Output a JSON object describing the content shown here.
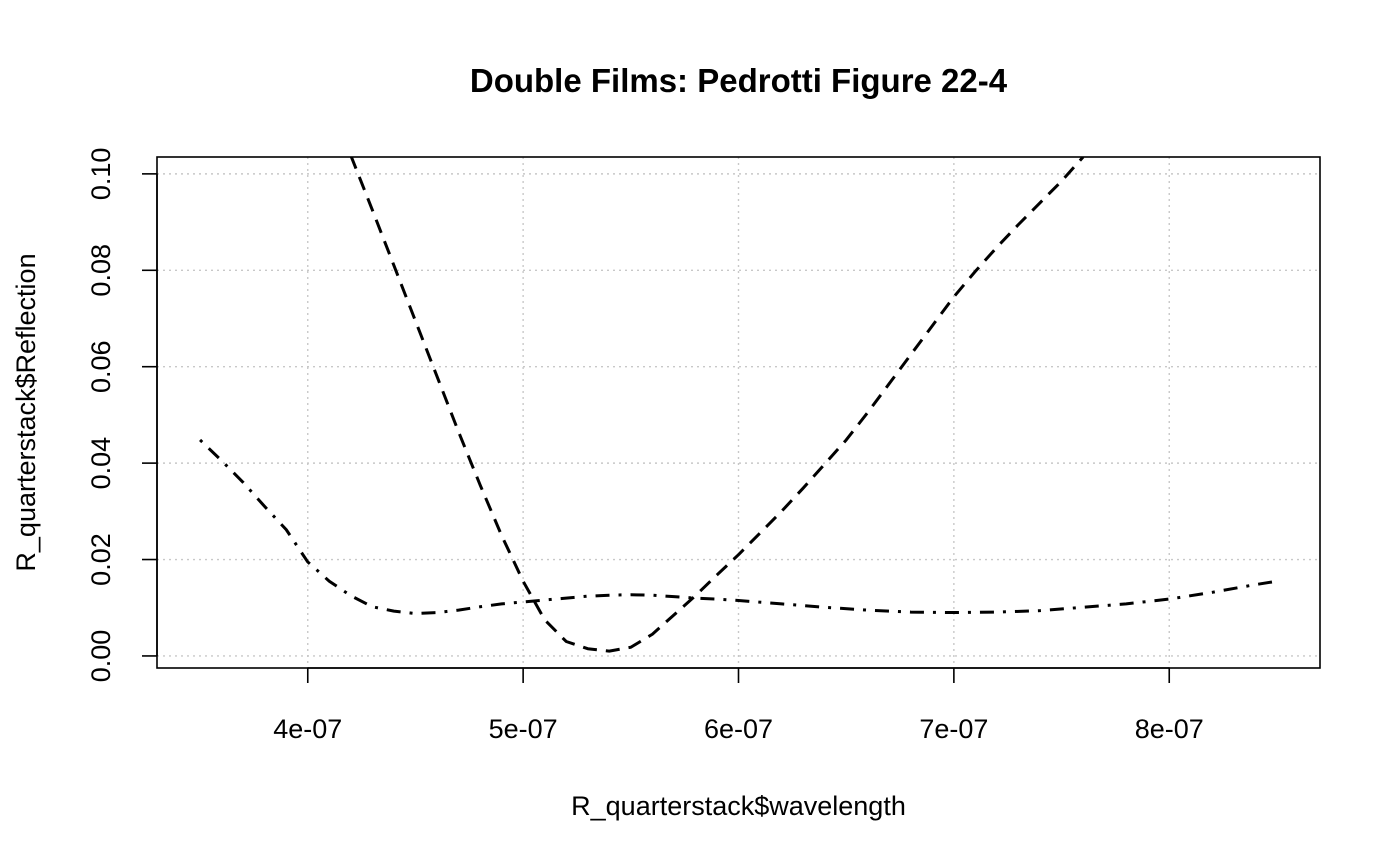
{
  "chart_data": {
    "type": "line",
    "title": "Double Films: Pedrotti Figure 22-4",
    "xlabel": "R_quarterstack$wavelength",
    "ylabel": "R_quarterstack$Reflection",
    "xlim": [
      3.3e-07,
      8.7e-07
    ],
    "ylim": [
      -0.0025,
      0.1035
    ],
    "grid": true,
    "x_ticks": [
      {
        "value": 4e-07,
        "label": "4e-07"
      },
      {
        "value": 5e-07,
        "label": "5e-07"
      },
      {
        "value": 6e-07,
        "label": "6e-07"
      },
      {
        "value": 7e-07,
        "label": "7e-07"
      },
      {
        "value": 8e-07,
        "label": "8e-07"
      }
    ],
    "y_ticks": [
      {
        "value": 0.0,
        "label": "0.00"
      },
      {
        "value": 0.02,
        "label": "0.02"
      },
      {
        "value": 0.04,
        "label": "0.04"
      },
      {
        "value": 0.06,
        "label": "0.06"
      },
      {
        "value": 0.08,
        "label": "0.08"
      },
      {
        "value": 0.1,
        "label": "0.10"
      }
    ],
    "series": [
      {
        "line_style": "dashed",
        "color": "#000000",
        "x": [
          4.2e-07,
          4.3e-07,
          4.4e-07,
          4.5e-07,
          4.6e-07,
          4.7e-07,
          4.8e-07,
          4.9e-07,
          5e-07,
          5.1e-07,
          5.2e-07,
          5.3e-07,
          5.4e-07,
          5.5e-07,
          5.6e-07,
          5.7e-07,
          5.8e-07,
          5.9e-07,
          6e-07,
          6.1e-07,
          6.2e-07,
          6.3e-07,
          6.4e-07,
          6.5e-07,
          6.6e-07,
          6.7e-07,
          6.8e-07,
          6.9e-07,
          7e-07,
          7.1e-07,
          7.2e-07,
          7.3e-07,
          7.4e-07,
          7.5e-07,
          7.6e-07
        ],
        "y": [
          0.1038,
          0.0925,
          0.081,
          0.0695,
          0.058,
          0.0465,
          0.0355,
          0.025,
          0.0155,
          0.0075,
          0.003,
          0.0015,
          0.001,
          0.0018,
          0.0045,
          0.0085,
          0.0125,
          0.0168,
          0.021,
          0.0255,
          0.03,
          0.0348,
          0.0398,
          0.0448,
          0.0505,
          0.0565,
          0.0625,
          0.0685,
          0.0745,
          0.0798,
          0.0848,
          0.0895,
          0.094,
          0.0985,
          0.1035
        ]
      },
      {
        "line_style": "dotdash",
        "color": "#000000",
        "x": [
          3.5e-07,
          3.6e-07,
          3.7e-07,
          3.8e-07,
          3.9e-07,
          4e-07,
          4.1e-07,
          4.2e-07,
          4.3e-07,
          4.4e-07,
          4.5e-07,
          4.6e-07,
          4.7e-07,
          4.8e-07,
          4.9e-07,
          5e-07,
          5.1e-07,
          5.2e-07,
          5.3e-07,
          5.4e-07,
          5.5e-07,
          5.6e-07,
          5.7e-07,
          5.8e-07,
          5.9e-07,
          6e-07,
          6.2e-07,
          6.4e-07,
          6.6e-07,
          6.8e-07,
          7e-07,
          7.2e-07,
          7.4e-07,
          7.6e-07,
          7.8e-07,
          8e-07,
          8.2e-07,
          8.4e-07,
          8.5e-07
        ],
        "y": [
          0.0448,
          0.0405,
          0.036,
          0.031,
          0.0262,
          0.0195,
          0.0155,
          0.0125,
          0.0102,
          0.0093,
          0.0088,
          0.009,
          0.0095,
          0.0102,
          0.0108,
          0.0112,
          0.0116,
          0.012,
          0.0124,
          0.0126,
          0.0127,
          0.0126,
          0.0123,
          0.012,
          0.0118,
          0.0115,
          0.0108,
          0.0101,
          0.0095,
          0.0091,
          0.009,
          0.0091,
          0.0094,
          0.0101,
          0.0108,
          0.0118,
          0.0132,
          0.0148,
          0.0155
        ]
      }
    ]
  }
}
